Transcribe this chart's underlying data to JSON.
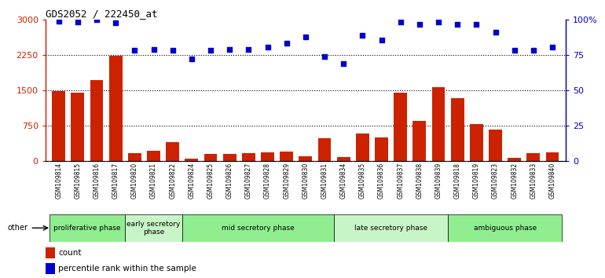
{
  "title": "GDS2052 / 222450_at",
  "samples": [
    "GSM109814",
    "GSM109815",
    "GSM109816",
    "GSM109817",
    "GSM109820",
    "GSM109821",
    "GSM109822",
    "GSM109824",
    "GSM109825",
    "GSM109826",
    "GSM109827",
    "GSM109828",
    "GSM109829",
    "GSM109830",
    "GSM109831",
    "GSM109834",
    "GSM109835",
    "GSM109836",
    "GSM109837",
    "GSM109838",
    "GSM109839",
    "GSM109818",
    "GSM109819",
    "GSM109823",
    "GSM109832",
    "GSM109833",
    "GSM109840"
  ],
  "counts": [
    1480,
    1450,
    1720,
    2240,
    175,
    220,
    400,
    55,
    160,
    155,
    165,
    180,
    210,
    110,
    490,
    90,
    580,
    510,
    1450,
    860,
    1570,
    1340,
    790,
    670,
    75,
    165,
    195
  ],
  "percentile_values": [
    2960,
    2950,
    2990,
    2930,
    2340,
    2360,
    2340,
    2160,
    2340,
    2360,
    2370,
    2410,
    2500,
    2630,
    2210,
    2060,
    2660,
    2570,
    2950,
    2900,
    2940,
    2900,
    2900,
    2730,
    2340,
    2350,
    2420
  ],
  "phases": [
    {
      "name": "proliferative phase",
      "start": 0,
      "end": 3,
      "color": "#90ee90"
    },
    {
      "name": "early secretory\nphase",
      "start": 4,
      "end": 6,
      "color": "#c8f5c8"
    },
    {
      "name": "mid secretory phase",
      "start": 7,
      "end": 14,
      "color": "#90ee90"
    },
    {
      "name": "late secretory phase",
      "start": 15,
      "end": 20,
      "color": "#c8f5c8"
    },
    {
      "name": "ambiguous phase",
      "start": 21,
      "end": 26,
      "color": "#90ee90"
    }
  ],
  "bar_color": "#cc2200",
  "dot_color": "#0000cc",
  "left_ylim": [
    0,
    3000
  ],
  "left_yticks": [
    0,
    750,
    1500,
    2250,
    3000
  ],
  "right_yticks_pos": [
    0,
    750,
    1500,
    2250,
    3000
  ],
  "right_yticklabels": [
    "0",
    "25",
    "50",
    "75",
    "100%"
  ],
  "grid_values": [
    750,
    1500,
    2250
  ],
  "plot_bg_color": "#ffffff",
  "tick_area_color": "#d0d0d0"
}
